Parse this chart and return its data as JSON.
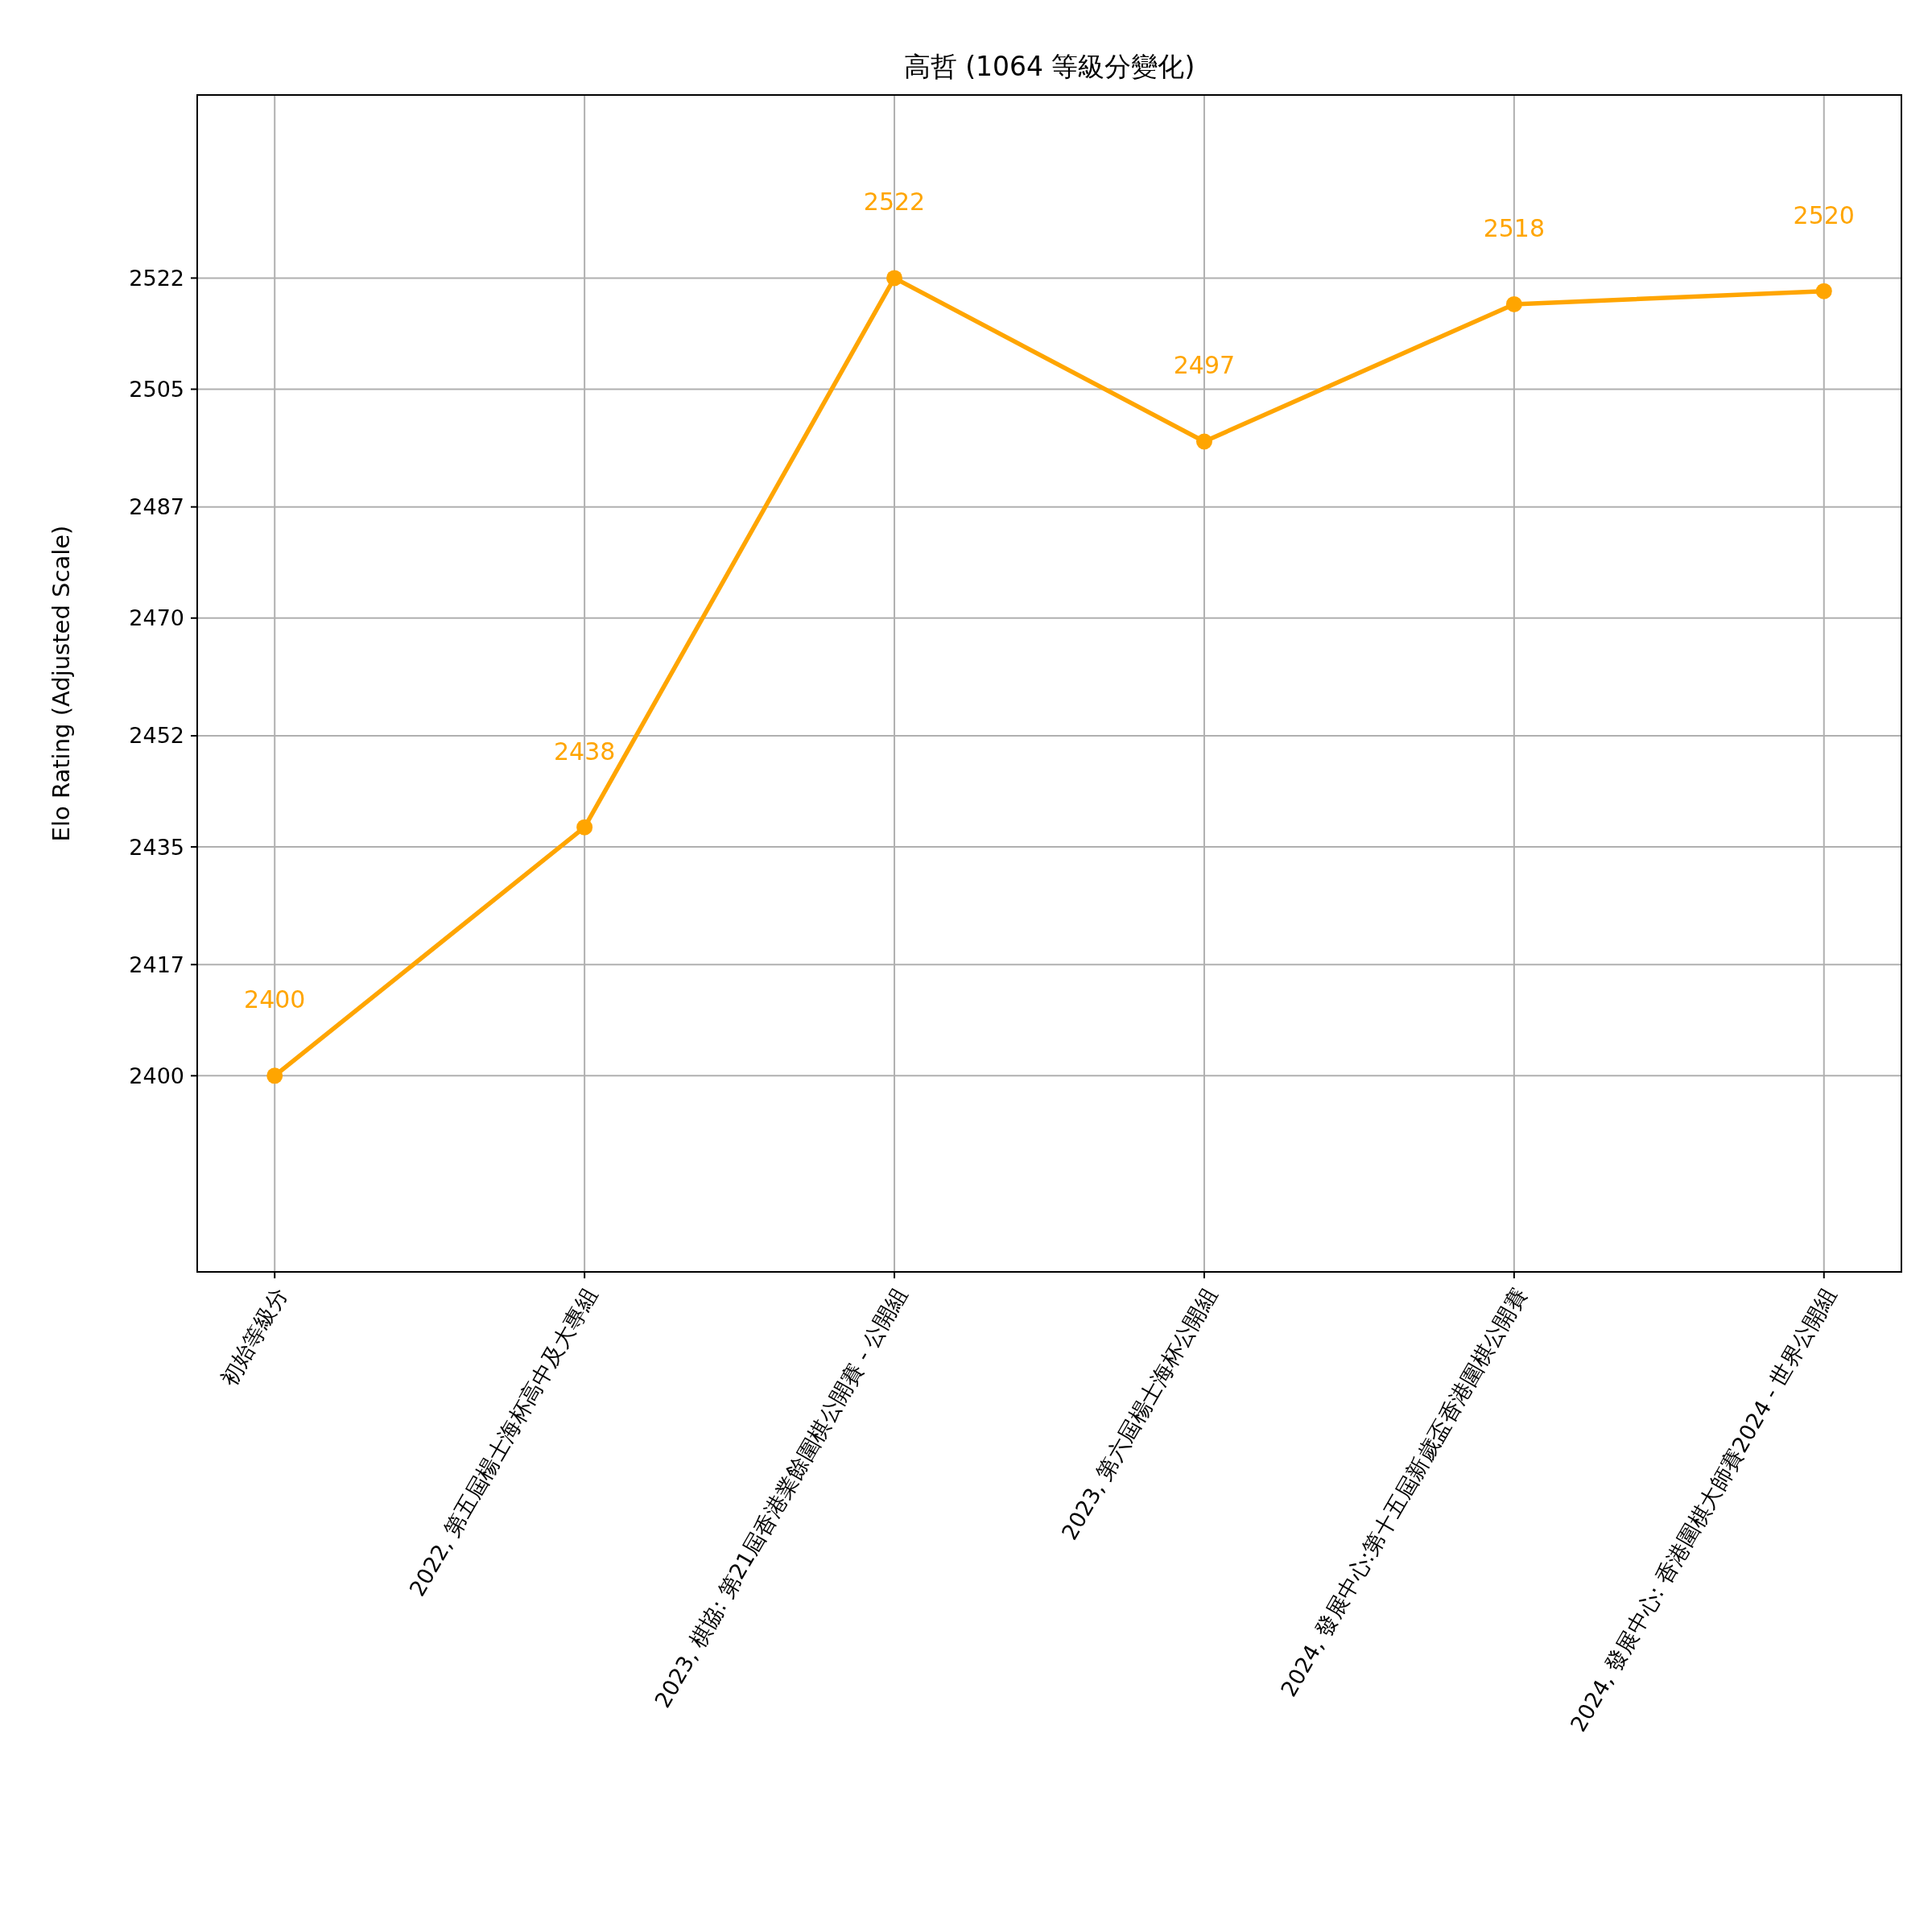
{
  "chart_data": {
    "type": "line",
    "title": "高哲 (1064 等級分變化)",
    "ylabel": "Elo Rating (Adjusted Scale)",
    "categories": [
      "初始等級分",
      "2022, 第五屆楊士海杯高中及大專組",
      "2023, 棋協: 第21屆香港業餘圍棋公開賽 - 公開組",
      "2023, 第六屆楊士海杯公開組",
      "2024, 發展中心:第十五屆新歲盃香港圍棋公開賽",
      "2024, 發展中心: 香港圍棋大師賽2024 - 世界公開組"
    ],
    "series": [
      {
        "color": "#ffa500",
        "values": [
          2400,
          2438,
          2522,
          2497,
          2518,
          2520
        ]
      }
    ],
    "ylim": [
      2370,
      2550
    ],
    "yticks": [
      2400,
      2417,
      2435,
      2452,
      2470,
      2487,
      2505,
      2522
    ],
    "grid": true,
    "marker": "circle",
    "line_style": "solid",
    "data_labels": true
  }
}
